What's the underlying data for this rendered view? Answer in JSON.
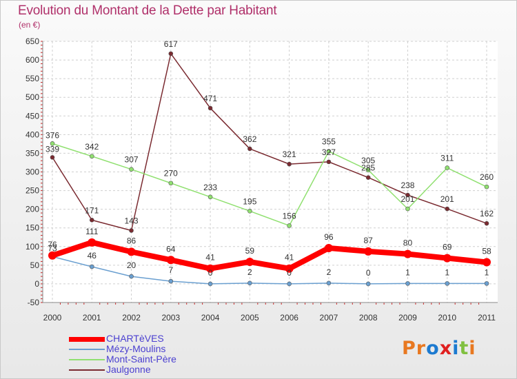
{
  "chart_data": {
    "type": "line",
    "title": "Evolution du Montant de la Dette par Habitant",
    "subtitle": "(en €)",
    "categories": [
      "2000",
      "2001",
      "2002",
      "2003",
      "2004",
      "2005",
      "2006",
      "2007",
      "2008",
      "2009",
      "2010",
      "2011"
    ],
    "ylim": [
      -50,
      650
    ],
    "yticks": [
      -50,
      0,
      50,
      100,
      150,
      200,
      250,
      300,
      350,
      400,
      450,
      500,
      550,
      600,
      650
    ],
    "ytick_labels": [
      "-50",
      "0",
      "50",
      "100",
      "150",
      "200",
      "250",
      "300",
      "350",
      "400",
      "450",
      "500",
      "550",
      "600",
      "650"
    ],
    "grid": true,
    "legend_position": "bottom-left",
    "series": [
      {
        "name": "CHARTèVES",
        "color": "#ff0000",
        "values": [
          76,
          111,
          86,
          64,
          41,
          59,
          41,
          96,
          87,
          80,
          69,
          58
        ]
      },
      {
        "name": "Mézy-Moulins",
        "color": "#6a9fd0",
        "values": [
          73,
          46,
          20,
          7,
          0,
          2,
          0,
          2,
          0,
          1,
          1,
          1
        ]
      },
      {
        "name": "Mont-Saint-Père",
        "color": "#90e070",
        "values": [
          376,
          342,
          307,
          270,
          233,
          195,
          156,
          355,
          305,
          201,
          311,
          260
        ]
      },
      {
        "name": "Jaulgonne",
        "color": "#7a2a30",
        "values": [
          339,
          171,
          143,
          617,
          471,
          362,
          321,
          327,
          285,
          238,
          201,
          162
        ]
      }
    ]
  },
  "logo": {
    "text": "Proxiti",
    "colors": [
      "#e87820",
      "#e87820",
      "#1c7ad0",
      "#e02020",
      "#1c7ad0",
      "#80c040",
      "#e87820"
    ]
  }
}
